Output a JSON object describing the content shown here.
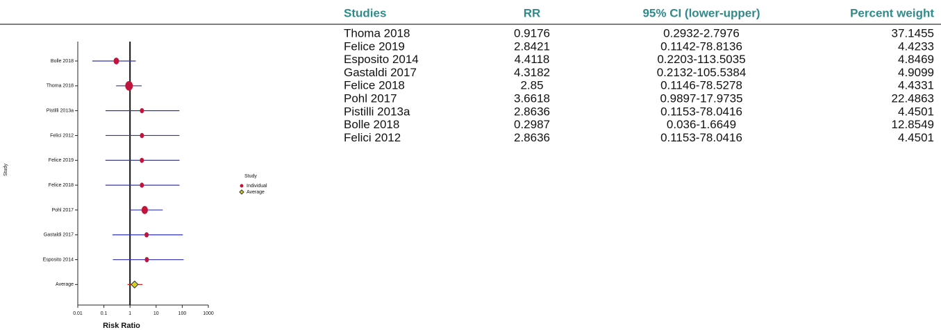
{
  "chart_data": {
    "type": "forest",
    "x_label": "Risk Ratio",
    "y_label": "Study",
    "legend_title": "Study",
    "log_x": true,
    "xlim": [
      0.01,
      1000
    ],
    "xticks": [
      0.01,
      0.1,
      1,
      10,
      100,
      1000
    ],
    "categories": [
      "Bolle 2018",
      "Thoma 2018",
      "Pistilli 2013a",
      "Felici 2012",
      "Felice 2019",
      "Felice 2018",
      "Pohl 2017",
      "Gastaldi 2017",
      "Esposito 2014",
      "Average"
    ],
    "series": [
      {
        "name": "Individual",
        "color": "#c0143c",
        "ci_color": "#3030b0",
        "values": [
          0.2987,
          0.9176,
          2.8636,
          2.8636,
          2.8421,
          2.85,
          3.6618,
          4.3182,
          4.4118,
          null
        ],
        "lower": [
          0.036,
          0.2932,
          0.1153,
          0.1153,
          0.1142,
          0.1146,
          0.9897,
          0.2132,
          0.2203,
          null
        ],
        "upper": [
          1.6649,
          2.7976,
          78.0416,
          78.0416,
          78.8136,
          78.5278,
          17.9735,
          105.5384,
          113.5035,
          null
        ],
        "weights": [
          12.8549,
          37.1455,
          4.4501,
          4.4501,
          4.4233,
          4.4331,
          22.4863,
          4.9099,
          4.8469,
          null
        ]
      },
      {
        "name": "Average",
        "color": "#d8d020",
        "ci_color": "#d02020",
        "values": [
          null,
          null,
          null,
          null,
          null,
          null,
          null,
          null,
          null,
          1.5
        ],
        "lower": [
          null,
          null,
          null,
          null,
          null,
          null,
          null,
          null,
          null,
          0.8
        ],
        "upper": [
          null,
          null,
          null,
          null,
          null,
          null,
          null,
          null,
          null,
          3
        ]
      }
    ]
  },
  "table": {
    "header": [
      "Studies",
      "RR",
      "95% CI (lower-upper)",
      "Percent weight"
    ],
    "rows": [
      [
        "Thoma 2018",
        "0.9176",
        "0.2932-2.7976",
        "37.1455"
      ],
      [
        "Felice 2019",
        "2.8421",
        "0.1142-78.8136",
        "4.4233"
      ],
      [
        "Esposito 2014",
        "4.4118",
        "0.2203-113.5035",
        "4.8469"
      ],
      [
        "Gastaldi 2017",
        "4.3182",
        "0.2132-105.5384",
        "4.9099"
      ],
      [
        "Felice 2018",
        "2.85",
        "0.1146-78.5278",
        "4.4331"
      ],
      [
        "Pohl 2017",
        "3.6618",
        "0.9897-17.9735",
        "22.4863"
      ],
      [
        "Pistilli 2013a",
        "2.8636",
        "0.1153-78.0416",
        "4.4501"
      ],
      [
        "Bolle 2018",
        "0.2987",
        "0.036-1.6649",
        "12.8549"
      ],
      [
        "Felici 2012",
        "2.8636",
        "0.1153-78.0416",
        "4.4501"
      ]
    ]
  }
}
